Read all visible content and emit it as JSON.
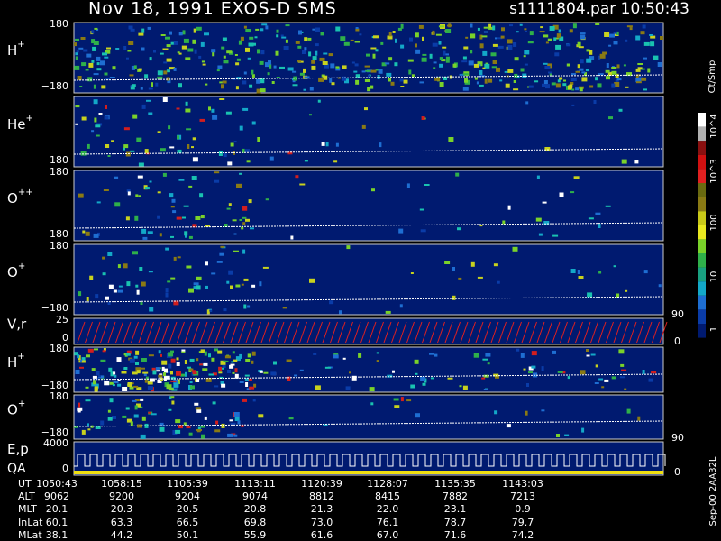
{
  "header": {
    "title": "Nov 18, 1991   EXOS-D SMS",
    "file": "s1111804.par  10:50:43"
  },
  "panels": [
    {
      "name": "H",
      "charge": "+",
      "top": "180",
      "bottom": "−180"
    },
    {
      "name": "He",
      "charge": "+",
      "bottom": "−180"
    },
    {
      "name": "O",
      "charge": "++",
      "top": "180",
      "bottom": "−180"
    },
    {
      "name": "O",
      "charge": "+",
      "top": "180",
      "bottom": "−180"
    },
    {
      "name": "V,r",
      "top": "25",
      "bottom": "0",
      "right_top": "90",
      "right_bottom": "0"
    },
    {
      "name": "H",
      "charge": "+",
      "top": "180",
      "bottom": "−180"
    },
    {
      "name": "O",
      "charge": "+",
      "top": "180",
      "bottom": "−180"
    },
    {
      "name": "E,p",
      "name2": "QA",
      "top": "4000",
      "bottom": "0",
      "right_top": "90",
      "right_bottom": "0"
    }
  ],
  "colorbar": {
    "unit": "Ct/Smp",
    "labels": [
      "10^4",
      "10^3",
      "100",
      "10",
      "1"
    ]
  },
  "footer": {
    "rows": [
      [
        "UT",
        "1050:43",
        "1058:15",
        "1105:39",
        "1113:11",
        "1120:39",
        "1128:07",
        "1135:35",
        "1143:03"
      ],
      [
        "ALT",
        "9062",
        "9200",
        "9204",
        "9074",
        "8812",
        "8415",
        "7882",
        "7213"
      ],
      [
        "MLT",
        "20.1",
        "20.3",
        "20.5",
        "20.8",
        "21.3",
        "22.0",
        "23.1",
        "0.9"
      ],
      [
        "InLat",
        "60.1",
        "63.3",
        "66.5",
        "69.8",
        "73.0",
        "76.1",
        "78.7",
        "79.7"
      ],
      [
        "MLat",
        "38.1",
        "44.2",
        "50.1",
        "55.9",
        "61.6",
        "67.0",
        "71.6",
        "74.2"
      ]
    ],
    "stamp": "Sep-00  2AA32L"
  }
}
